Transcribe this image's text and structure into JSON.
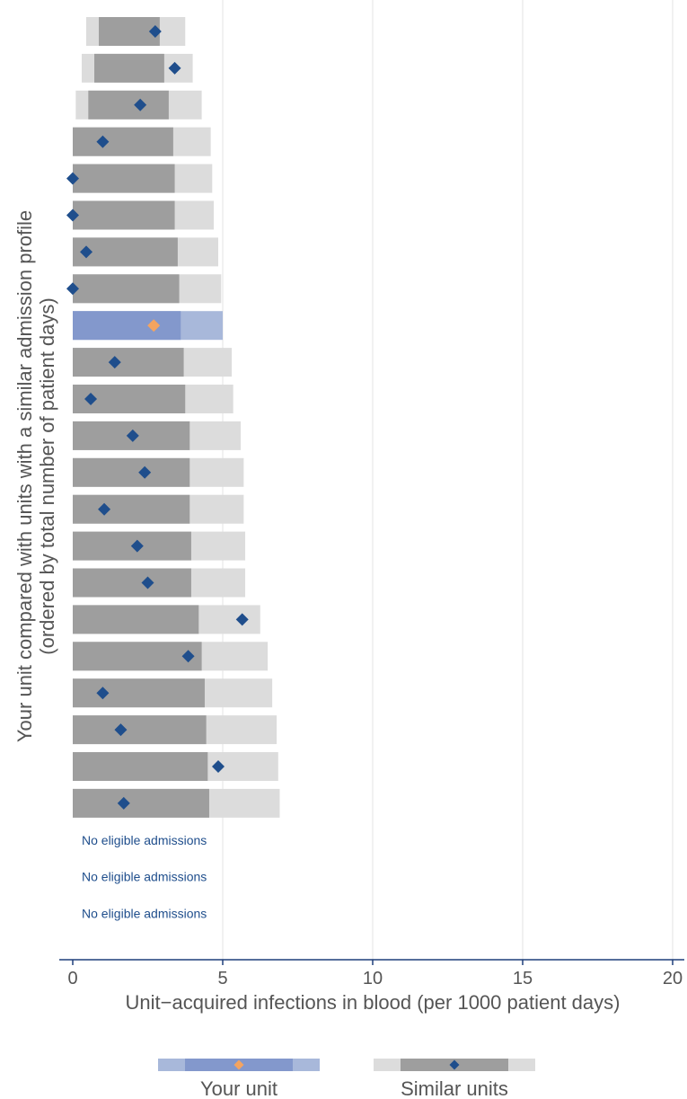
{
  "chart_data": {
    "type": "bar",
    "xlabel": "Unit−acquired infections in blood (per 1000 patient days)",
    "ylabel_line1": "Your unit compared with units with a similar admission profile",
    "ylabel_line2": "(ordered by total number of patient days)",
    "xlim": [
      0,
      20
    ],
    "x_ticks": [
      0,
      5,
      10,
      15,
      20
    ],
    "x_tick_labels": [
      "0",
      "5",
      "10",
      "15",
      "20"
    ],
    "grid": true,
    "legend_position": "bottom",
    "legend": [
      {
        "key": "your",
        "label": "Your unit"
      },
      {
        "key": "similar",
        "label": "Similar units"
      }
    ],
    "columns": [
      "outer_low",
      "inner_high",
      "outer_high",
      "value"
    ],
    "rows": [
      {
        "kind": "similar",
        "outer_low": 0.45,
        "inner_high": 2.9,
        "outer_high": 3.75,
        "value": 2.75
      },
      {
        "kind": "similar",
        "outer_low": 0.3,
        "inner_high": 3.05,
        "outer_high": 4.0,
        "value": 3.4
      },
      {
        "kind": "similar",
        "outer_low": 0.1,
        "inner_high": 3.2,
        "outer_high": 4.3,
        "value": 2.25
      },
      {
        "kind": "similar",
        "outer_low": 0.0,
        "inner_high": 3.35,
        "outer_high": 4.6,
        "value": 1.0
      },
      {
        "kind": "similar",
        "outer_low": 0.0,
        "inner_high": 3.4,
        "outer_high": 4.65,
        "value": 0.0
      },
      {
        "kind": "similar",
        "outer_low": 0.0,
        "inner_high": 3.4,
        "outer_high": 4.7,
        "value": 0.0
      },
      {
        "kind": "similar",
        "outer_low": 0.0,
        "inner_high": 3.5,
        "outer_high": 4.85,
        "value": 0.45
      },
      {
        "kind": "similar",
        "outer_low": 0.0,
        "inner_high": 3.55,
        "outer_high": 4.95,
        "value": 0.0
      },
      {
        "kind": "your",
        "outer_low": 0.0,
        "inner_high": 3.6,
        "outer_high": 5.0,
        "value": 2.7
      },
      {
        "kind": "similar",
        "outer_low": 0.0,
        "inner_high": 3.7,
        "outer_high": 5.3,
        "value": 1.4
      },
      {
        "kind": "similar",
        "outer_low": 0.0,
        "inner_high": 3.75,
        "outer_high": 5.35,
        "value": 0.6
      },
      {
        "kind": "similar",
        "outer_low": 0.0,
        "inner_high": 3.9,
        "outer_high": 5.6,
        "value": 2.0
      },
      {
        "kind": "similar",
        "outer_low": 0.0,
        "inner_high": 3.9,
        "outer_high": 5.7,
        "value": 2.4
      },
      {
        "kind": "similar",
        "outer_low": 0.0,
        "inner_high": 3.9,
        "outer_high": 5.7,
        "value": 1.05
      },
      {
        "kind": "similar",
        "outer_low": 0.0,
        "inner_high": 3.95,
        "outer_high": 5.75,
        "value": 2.15
      },
      {
        "kind": "similar",
        "outer_low": 0.0,
        "inner_high": 3.95,
        "outer_high": 5.75,
        "value": 2.5
      },
      {
        "kind": "similar",
        "outer_low": 0.0,
        "inner_high": 4.2,
        "outer_high": 6.25,
        "value": 5.65
      },
      {
        "kind": "similar",
        "outer_low": 0.0,
        "inner_high": 4.3,
        "outer_high": 6.5,
        "value": 3.85
      },
      {
        "kind": "similar",
        "outer_low": 0.0,
        "inner_high": 4.4,
        "outer_high": 6.65,
        "value": 1.0
      },
      {
        "kind": "similar",
        "outer_low": 0.0,
        "inner_high": 4.45,
        "outer_high": 6.8,
        "value": 1.6
      },
      {
        "kind": "similar",
        "outer_low": 0.0,
        "inner_high": 4.5,
        "outer_high": 6.85,
        "value": 4.85
      },
      {
        "kind": "similar",
        "outer_low": 0.0,
        "inner_high": 4.55,
        "outer_high": 6.9,
        "value": 1.7
      },
      {
        "kind": "note",
        "text": "No eligible admissions"
      },
      {
        "kind": "note",
        "text": "No eligible admissions"
      },
      {
        "kind": "note",
        "text": "No eligible admissions"
      }
    ]
  },
  "colors": {
    "similar_outer": "#dcdcdc",
    "similar_inner": "#9e9e9e",
    "similar_marker": "#1f4e8c",
    "your_outer": "#a8b8da",
    "your_inner": "#8398cc",
    "your_marker": "#f4a460",
    "grid": "#e3e3e3",
    "axis": "#1f3f7a",
    "note_text": "#1f4e8c"
  }
}
